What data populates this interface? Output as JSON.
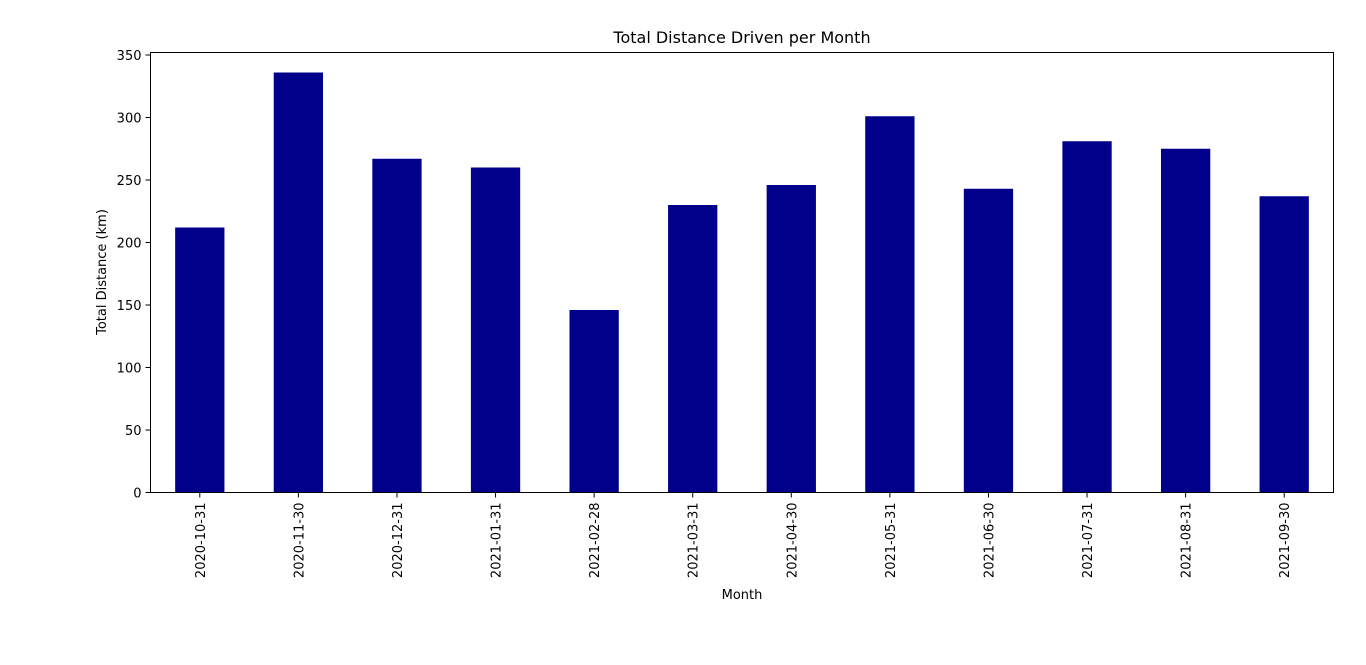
{
  "chart_data": {
    "type": "bar",
    "title": "Total Distance Driven per Month",
    "xlabel": "Month",
    "ylabel": "Total Distance (km)",
    "categories": [
      "2020-10-31",
      "2020-11-30",
      "2020-12-31",
      "2021-01-31",
      "2021-02-28",
      "2021-03-31",
      "2021-04-30",
      "2021-05-31",
      "2021-06-30",
      "2021-07-31",
      "2021-08-31",
      "2021-09-30"
    ],
    "values": [
      212,
      336,
      267,
      260,
      146,
      230,
      246,
      301,
      243,
      281,
      275,
      237
    ],
    "ylim": [
      0,
      352
    ],
    "yticks": [
      0,
      50,
      100,
      150,
      200,
      250,
      300,
      350
    ],
    "grid": false,
    "legend": "none",
    "bar_color": "#00008b"
  }
}
